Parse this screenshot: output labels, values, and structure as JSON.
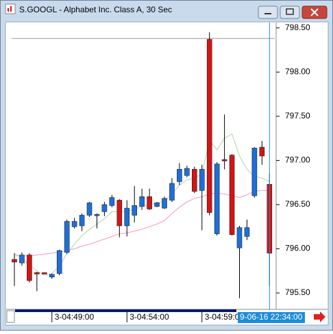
{
  "chart_data": {
    "type": "candlestick",
    "title": "S.GOOGL - Alphabet Inc. Class A, 30 Sec",
    "categories": [
      null,
      null,
      null,
      null,
      null,
      "3-04:49:00",
      null,
      null,
      null,
      null,
      null,
      null,
      null,
      null,
      null,
      "3-04:54:00",
      null,
      null,
      null,
      null,
      null,
      null,
      null,
      null,
      null,
      "3-04:59:00",
      null,
      null,
      null,
      null,
      null,
      null,
      null,
      null,
      null
    ],
    "open": [
      795.88,
      795.84,
      795.93,
      795.73,
      795.73,
      795.68,
      795.72,
      795.96,
      796.25,
      796.26,
      796.38,
      796.39,
      796.42,
      796.49,
      796.55,
      796.26,
      796.38,
      796.48,
      796.59,
      796.48,
      796.46,
      796.55,
      796.76,
      796.83,
      796.9,
      796.66,
      798.37,
      796.17,
      797.01,
      797.06,
      796.01,
      796.14,
      796.6,
      797.15,
      796.73
    ],
    "high": [
      795.95,
      795.96,
      795.95,
      795.74,
      795.73,
      795.72,
      795.99,
      796.33,
      796.35,
      796.4,
      796.53,
      796.4,
      796.53,
      796.61,
      796.56,
      796.55,
      796.71,
      796.68,
      796.68,
      796.53,
      796.59,
      796.8,
      796.97,
      796.94,
      796.93,
      796.95,
      798.45,
      796.98,
      797.52,
      797.07,
      796.26,
      796.33,
      797.15,
      797.22,
      796.85
    ],
    "low": [
      795.58,
      795.81,
      795.62,
      795.52,
      795.72,
      795.66,
      795.7,
      795.94,
      796.23,
      796.2,
      796.36,
      796.23,
      796.37,
      796.47,
      796.13,
      796.14,
      796.3,
      796.44,
      796.44,
      796.47,
      796.45,
      796.53,
      796.72,
      796.81,
      796.63,
      796.21,
      796.38,
      796.15,
      796.9,
      796.15,
      795.44,
      796.1,
      796.58,
      796.95,
      795.58
    ],
    "close": [
      795.85,
      795.93,
      795.64,
      795.72,
      795.72,
      795.71,
      795.98,
      796.31,
      796.31,
      796.38,
      796.52,
      796.39,
      796.5,
      796.58,
      796.26,
      796.46,
      796.49,
      796.59,
      796.45,
      796.52,
      796.57,
      796.74,
      796.9,
      796.91,
      796.65,
      796.9,
      796.41,
      796.96,
      797.0,
      796.16,
      796.24,
      796.24,
      797.14,
      797.05,
      795.95
    ],
    "up_color": "#1e6fd9",
    "down_color": "#d41414",
    "lines": [
      {
        "color": "#b8dcb8",
        "values": [
          795.95,
          795.9,
          795.82,
          795.75,
          795.7,
          795.72,
          795.8,
          795.95,
          796.05,
          796.15,
          796.22,
          796.28,
          796.34,
          796.42,
          796.42,
          796.42,
          796.45,
          796.48,
          796.5,
          796.52,
          796.54,
          796.62,
          796.72,
          796.78,
          796.8,
          796.85,
          797.23,
          797.12,
          797.25,
          797.3,
          797.05,
          796.9,
          796.82,
          796.8,
          796.76
        ]
      },
      {
        "color": "#f5a6c8",
        "values": [
          795.92,
          795.92,
          795.92,
          795.93,
          795.94,
          795.95,
          795.96,
          795.98,
          796.0,
          796.03,
          796.05,
          796.08,
          796.11,
          796.14,
          796.17,
          796.18,
          796.2,
          796.22,
          796.25,
          796.28,
          796.32,
          796.4,
          796.47,
          796.53,
          796.57,
          796.59,
          796.62,
          796.63,
          796.62,
          796.6,
          796.58,
          796.61,
          796.65,
          796.66,
          796.66
        ]
      }
    ],
    "reference_line": 798.38,
    "crosshair_label": "9-06-16 22:34:00",
    "ylim": [
      795.33,
      798.56
    ],
    "yticks": [
      {
        "value": 795.5,
        "label": "795.50"
      },
      {
        "value": 796.0,
        "label": "796.00"
      },
      {
        "value": 796.5,
        "label": "796.50"
      },
      {
        "value": 797.0,
        "label": "797.00"
      },
      {
        "value": 797.5,
        "label": "797.50"
      },
      {
        "value": 798.0,
        "label": "798.00"
      },
      {
        "value": 798.5,
        "label": "798.50"
      }
    ]
  }
}
